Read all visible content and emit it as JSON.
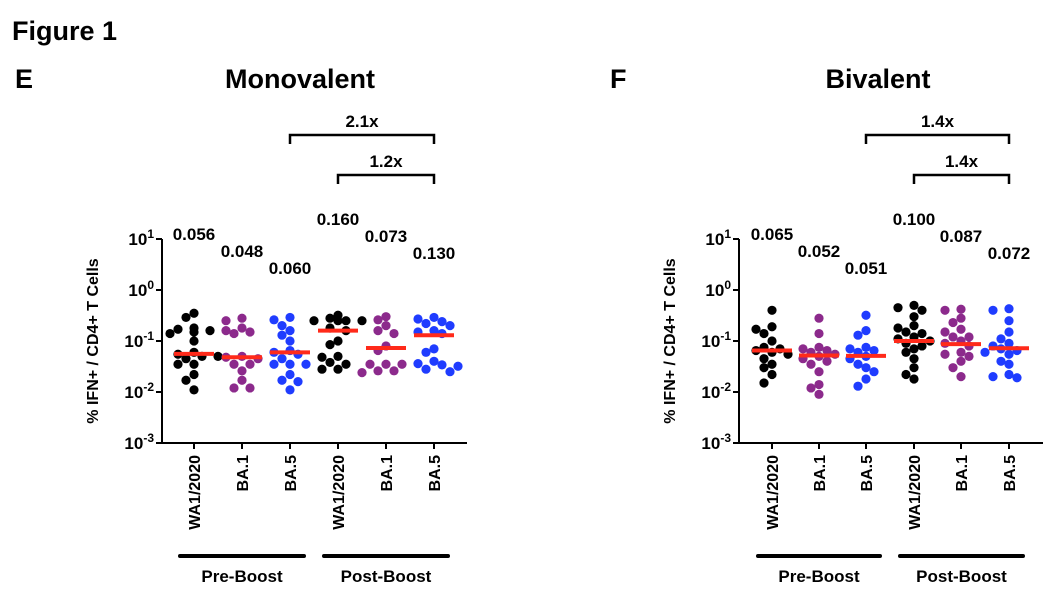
{
  "figure_title": "Figure 1",
  "colors": {
    "WA1/2020": "#000000",
    "BA.1": "#8c2a8c",
    "BA.5": "#1f3cff",
    "median": "#ff2a1a"
  },
  "chart_data": [
    {
      "type": "scatter",
      "panel": "E",
      "title": "Monovalent",
      "ylabel": "% IFN+ / CD4+ T Cells",
      "yscale": "log",
      "ylim": [
        0.001,
        10
      ],
      "yticks": [
        {
          "base": "10",
          "exp": "1"
        },
        {
          "base": "10",
          "exp": "0"
        },
        {
          "base": "10",
          "exp": "-1"
        },
        {
          "base": "10",
          "exp": "-2"
        },
        {
          "base": "10",
          "exp": "-3"
        }
      ],
      "categories": [
        "WA1/2020",
        "BA.1",
        "BA.5",
        "WA1/2020",
        "BA.1",
        "BA.5"
      ],
      "groups": [
        {
          "label": "Pre-Boost",
          "span": [
            0,
            2
          ]
        },
        {
          "label": "Post-Boost",
          "span": [
            3,
            5
          ]
        }
      ],
      "series": [
        {
          "category": "WA1/2020",
          "median": 0.056,
          "median_label": "0.056",
          "values": [
            0.35,
            0.29,
            0.18,
            0.17,
            0.16,
            0.15,
            0.14,
            0.1,
            0.06,
            0.055,
            0.05,
            0.05,
            0.045,
            0.035,
            0.035,
            0.022,
            0.017,
            0.011
          ]
        },
        {
          "category": "BA.1",
          "median": 0.048,
          "median_label": "0.048",
          "values": [
            0.28,
            0.25,
            0.18,
            0.16,
            0.15,
            0.14,
            0.05,
            0.048,
            0.045,
            0.035,
            0.035,
            0.026,
            0.017,
            0.012,
            0.012
          ]
        },
        {
          "category": "BA.5",
          "median": 0.06,
          "median_label": "0.060",
          "values": [
            0.29,
            0.26,
            0.2,
            0.16,
            0.13,
            0.1,
            0.065,
            0.06,
            0.055,
            0.045,
            0.035,
            0.035,
            0.035,
            0.022,
            0.017,
            0.016,
            0.011
          ]
        },
        {
          "category": "WA1/2020",
          "median": 0.16,
          "median_label": "0.160",
          "values": [
            0.32,
            0.28,
            0.25,
            0.25,
            0.25,
            0.25,
            0.18,
            0.16,
            0.1,
            0.085,
            0.05,
            0.048,
            0.038,
            0.035,
            0.028,
            0.028
          ]
        },
        {
          "category": "BA.1",
          "median": 0.073,
          "median_label": "0.073",
          "values": [
            0.3,
            0.26,
            0.2,
            0.16,
            0.14,
            0.08,
            0.065,
            0.035,
            0.035,
            0.035,
            0.026,
            0.026,
            0.024
          ]
        },
        {
          "category": "BA.5",
          "median": 0.13,
          "median_label": "0.130",
          "values": [
            0.29,
            0.27,
            0.24,
            0.22,
            0.2,
            0.16,
            0.15,
            0.14,
            0.07,
            0.06,
            0.04,
            0.036,
            0.034,
            0.032,
            0.028,
            0.025
          ]
        }
      ],
      "brackets": [
        {
          "from": 2,
          "to": 5,
          "label": "2.1x"
        },
        {
          "from": 3,
          "to": 5,
          "label": "1.2x"
        }
      ]
    },
    {
      "type": "scatter",
      "panel": "F",
      "title": "Bivalent",
      "ylabel": "% IFN+ / CD4+ T Cells",
      "yscale": "log",
      "ylim": [
        0.001,
        10
      ],
      "yticks": [
        {
          "base": "10",
          "exp": "1"
        },
        {
          "base": "10",
          "exp": "0"
        },
        {
          "base": "10",
          "exp": "-1"
        },
        {
          "base": "10",
          "exp": "-2"
        },
        {
          "base": "10",
          "exp": "-3"
        }
      ],
      "categories": [
        "WA1/2020",
        "BA.1",
        "BA.5",
        "WA1/2020",
        "BA.1",
        "BA.5"
      ],
      "groups": [
        {
          "label": "Pre-Boost",
          "span": [
            0,
            2
          ]
        },
        {
          "label": "Post-Boost",
          "span": [
            3,
            5
          ]
        }
      ],
      "series": [
        {
          "category": "WA1/2020",
          "median": 0.065,
          "median_label": "0.065",
          "values": [
            0.4,
            0.19,
            0.17,
            0.14,
            0.1,
            0.075,
            0.07,
            0.065,
            0.06,
            0.055,
            0.045,
            0.035,
            0.03,
            0.022,
            0.015
          ]
        },
        {
          "category": "BA.1",
          "median": 0.052,
          "median_label": "0.052",
          "values": [
            0.28,
            0.14,
            0.075,
            0.07,
            0.065,
            0.06,
            0.055,
            0.05,
            0.045,
            0.04,
            0.035,
            0.025,
            0.014,
            0.012,
            0.009
          ]
        },
        {
          "category": "BA.5",
          "median": 0.051,
          "median_label": "0.051",
          "values": [
            0.32,
            0.16,
            0.13,
            0.075,
            0.07,
            0.065,
            0.06,
            0.05,
            0.045,
            0.035,
            0.03,
            0.025,
            0.018,
            0.013
          ]
        },
        {
          "category": "WA1/2020",
          "median": 0.1,
          "median_label": "0.100",
          "values": [
            0.5,
            0.45,
            0.4,
            0.3,
            0.2,
            0.18,
            0.15,
            0.14,
            0.12,
            0.11,
            0.1,
            0.09,
            0.08,
            0.07,
            0.06,
            0.045,
            0.03,
            0.022,
            0.018
          ]
        },
        {
          "category": "BA.1",
          "median": 0.087,
          "median_label": "0.087",
          "values": [
            0.42,
            0.4,
            0.28,
            0.23,
            0.17,
            0.15,
            0.12,
            0.12,
            0.1,
            0.09,
            0.08,
            0.06,
            0.055,
            0.05,
            0.04,
            0.03,
            0.02
          ]
        },
        {
          "category": "BA.5",
          "median": 0.072,
          "median_label": "0.072",
          "values": [
            0.43,
            0.4,
            0.25,
            0.15,
            0.11,
            0.09,
            0.08,
            0.07,
            0.065,
            0.06,
            0.055,
            0.04,
            0.035,
            0.022,
            0.02,
            0.019
          ]
        }
      ],
      "brackets": [
        {
          "from": 2,
          "to": 5,
          "label": "1.4x"
        },
        {
          "from": 3,
          "to": 5,
          "label": "1.4x"
        }
      ]
    }
  ]
}
